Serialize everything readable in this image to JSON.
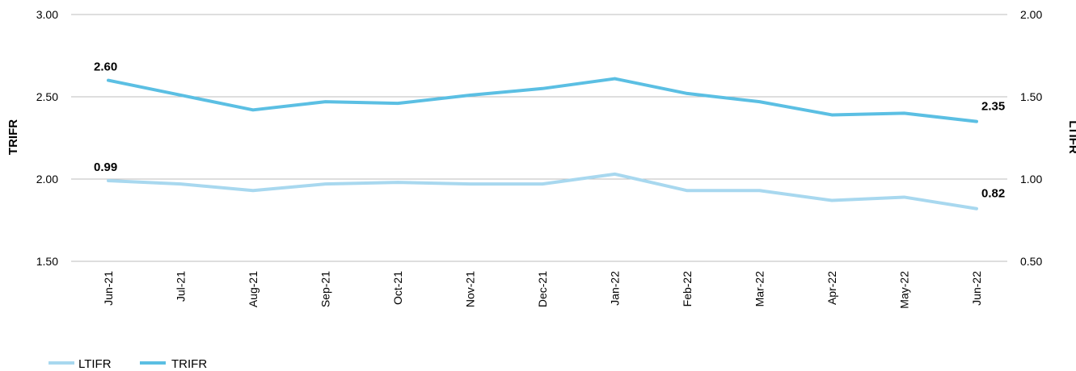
{
  "chart_data": {
    "type": "line",
    "categories": [
      "Jun-21",
      "Jul-21",
      "Aug-21",
      "Sep-21",
      "Oct-21",
      "Nov-21",
      "Dec-21",
      "Jan-22",
      "Feb-22",
      "Mar-22",
      "Apr-22",
      "May-22",
      "Jun-22"
    ],
    "series": [
      {
        "name": "LTIFR",
        "axis": "right",
        "color": "#a8d8ef",
        "values": [
          0.99,
          0.97,
          0.93,
          0.97,
          0.98,
          0.97,
          0.97,
          1.03,
          0.93,
          0.93,
          0.87,
          0.89,
          0.82
        ]
      },
      {
        "name": "TRIFR",
        "axis": "left",
        "color": "#5bbfe3",
        "values": [
          2.6,
          2.51,
          2.42,
          2.47,
          2.46,
          2.51,
          2.55,
          2.61,
          2.52,
          2.47,
          2.39,
          2.4,
          2.35
        ]
      }
    ],
    "data_labels": [
      {
        "series": "TRIFR",
        "index": 0,
        "text": "2.60"
      },
      {
        "series": "TRIFR",
        "index": 12,
        "text": "2.35"
      },
      {
        "series": "LTIFR",
        "index": 0,
        "text": "0.99"
      },
      {
        "series": "LTIFR",
        "index": 12,
        "text": "0.82"
      }
    ],
    "y_left": {
      "label": "TRIFR",
      "ylim": [
        1.5,
        3.0
      ],
      "ticks": [
        "1.50",
        "2.00",
        "2.50",
        "3.00"
      ]
    },
    "y_right": {
      "label": "LTIFR",
      "ylim": [
        0.5,
        2.0
      ],
      "ticks": [
        "0.50",
        "1.00",
        "1.50",
        "2.00"
      ]
    },
    "grid": true,
    "legend": [
      "LTIFR",
      "TRIFR"
    ],
    "legend_position": "bottom-left"
  }
}
